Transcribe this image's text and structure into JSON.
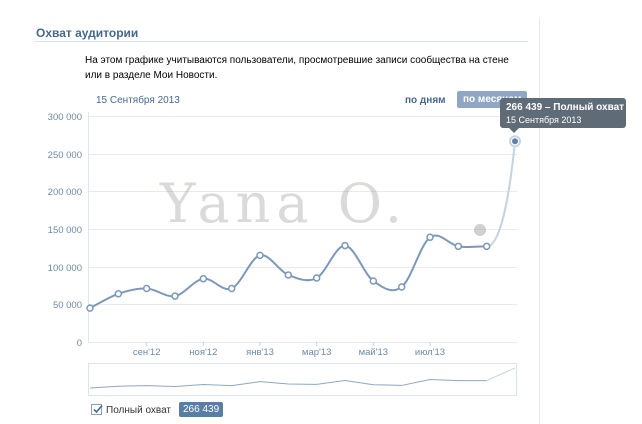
{
  "section": {
    "title": "Охват аудитории",
    "description": "На этом графике учитываются пользователи, просмотревшие записи сообщества на стене или в разделе Мои Новости."
  },
  "controls": {
    "date": "15 Сентября 2013",
    "period_days": "по дням",
    "period_months": "по месяцам"
  },
  "tooltip": {
    "main": "266 439 – Полный охват",
    "sub": "15 Сентября 2013"
  },
  "legend": {
    "label": "Полный охват",
    "value": "266 439",
    "checked": true
  },
  "watermark": {
    "text": "Yana O."
  },
  "colors": {
    "line": "#7c98b8",
    "accent": "#45688e",
    "grid": "#e6ebf0"
  },
  "chart_data": {
    "type": "line",
    "title": "",
    "xlabel": "",
    "ylabel": "",
    "ylim": [
      0,
      300000
    ],
    "y_ticks": [
      0,
      50000,
      100000,
      150000,
      200000,
      250000,
      300000
    ],
    "y_tick_labels": [
      "0",
      "50 000",
      "100 000",
      "150 000",
      "200 000",
      "250 000",
      "300 000"
    ],
    "x_tick_labels": [
      "сен'12",
      "ноя'12",
      "янв'13",
      "мар'13",
      "май'13",
      "июл'13"
    ],
    "x_tick_index": [
      2,
      4,
      6,
      8,
      10,
      12
    ],
    "grid": true,
    "series": [
      {
        "name": "Полный охват",
        "values": [
          45000,
          64000,
          71000,
          61000,
          84000,
          71000,
          115000,
          89000,
          85000,
          128000,
          81000,
          73000,
          139000,
          127000,
          127000,
          266439
        ]
      }
    ]
  }
}
